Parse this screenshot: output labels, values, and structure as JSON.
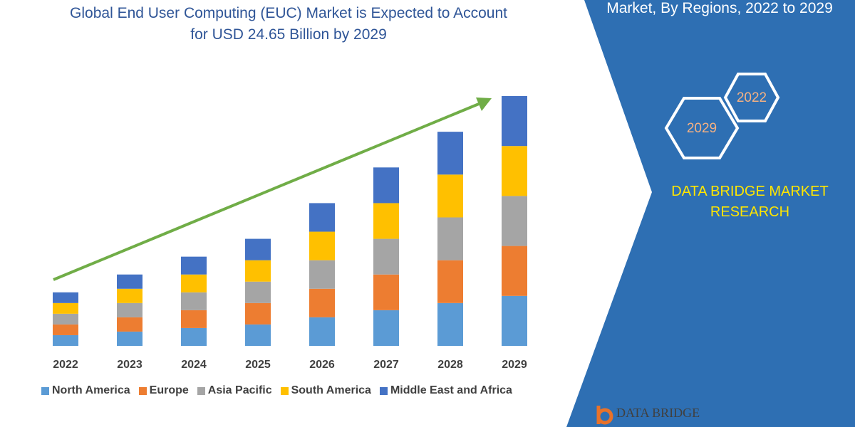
{
  "chart_data": {
    "type": "stacked-bar",
    "title": "Global End User Computing (EUC) Market is Expected to Account for USD 24.65 Billion by 2029",
    "categories": [
      "2022",
      "2023",
      "2024",
      "2025",
      "2026",
      "2027",
      "2028",
      "2029"
    ],
    "series": [
      {
        "name": "North America",
        "color": "#5b9bd5",
        "values": [
          15,
          20,
          25,
          30,
          40,
          50,
          60,
          70
        ]
      },
      {
        "name": "Europe",
        "color": "#ed7d31",
        "values": [
          15,
          20,
          25,
          30,
          40,
          50,
          60,
          70
        ]
      },
      {
        "name": "Asia Pacific",
        "color": "#a5a5a5",
        "values": [
          15,
          20,
          25,
          30,
          40,
          50,
          60,
          70
        ]
      },
      {
        "name": "South America",
        "color": "#ffc000",
        "values": [
          15,
          20,
          25,
          30,
          40,
          50,
          60,
          70
        ]
      },
      {
        "name": "Middle East and Africa",
        "color": "#4472c4",
        "values": [
          15,
          20,
          25,
          30,
          40,
          50,
          60,
          70
        ]
      }
    ],
    "ylim": [
      0,
      350
    ]
  },
  "panel": {
    "heading": "Market, By Regions, 2022 to 2029",
    "hexagons": [
      "2022",
      "2029"
    ],
    "brand": "DATA BRIDGE MARKET RESEARCH",
    "logo": "DATA BRIDGE"
  }
}
